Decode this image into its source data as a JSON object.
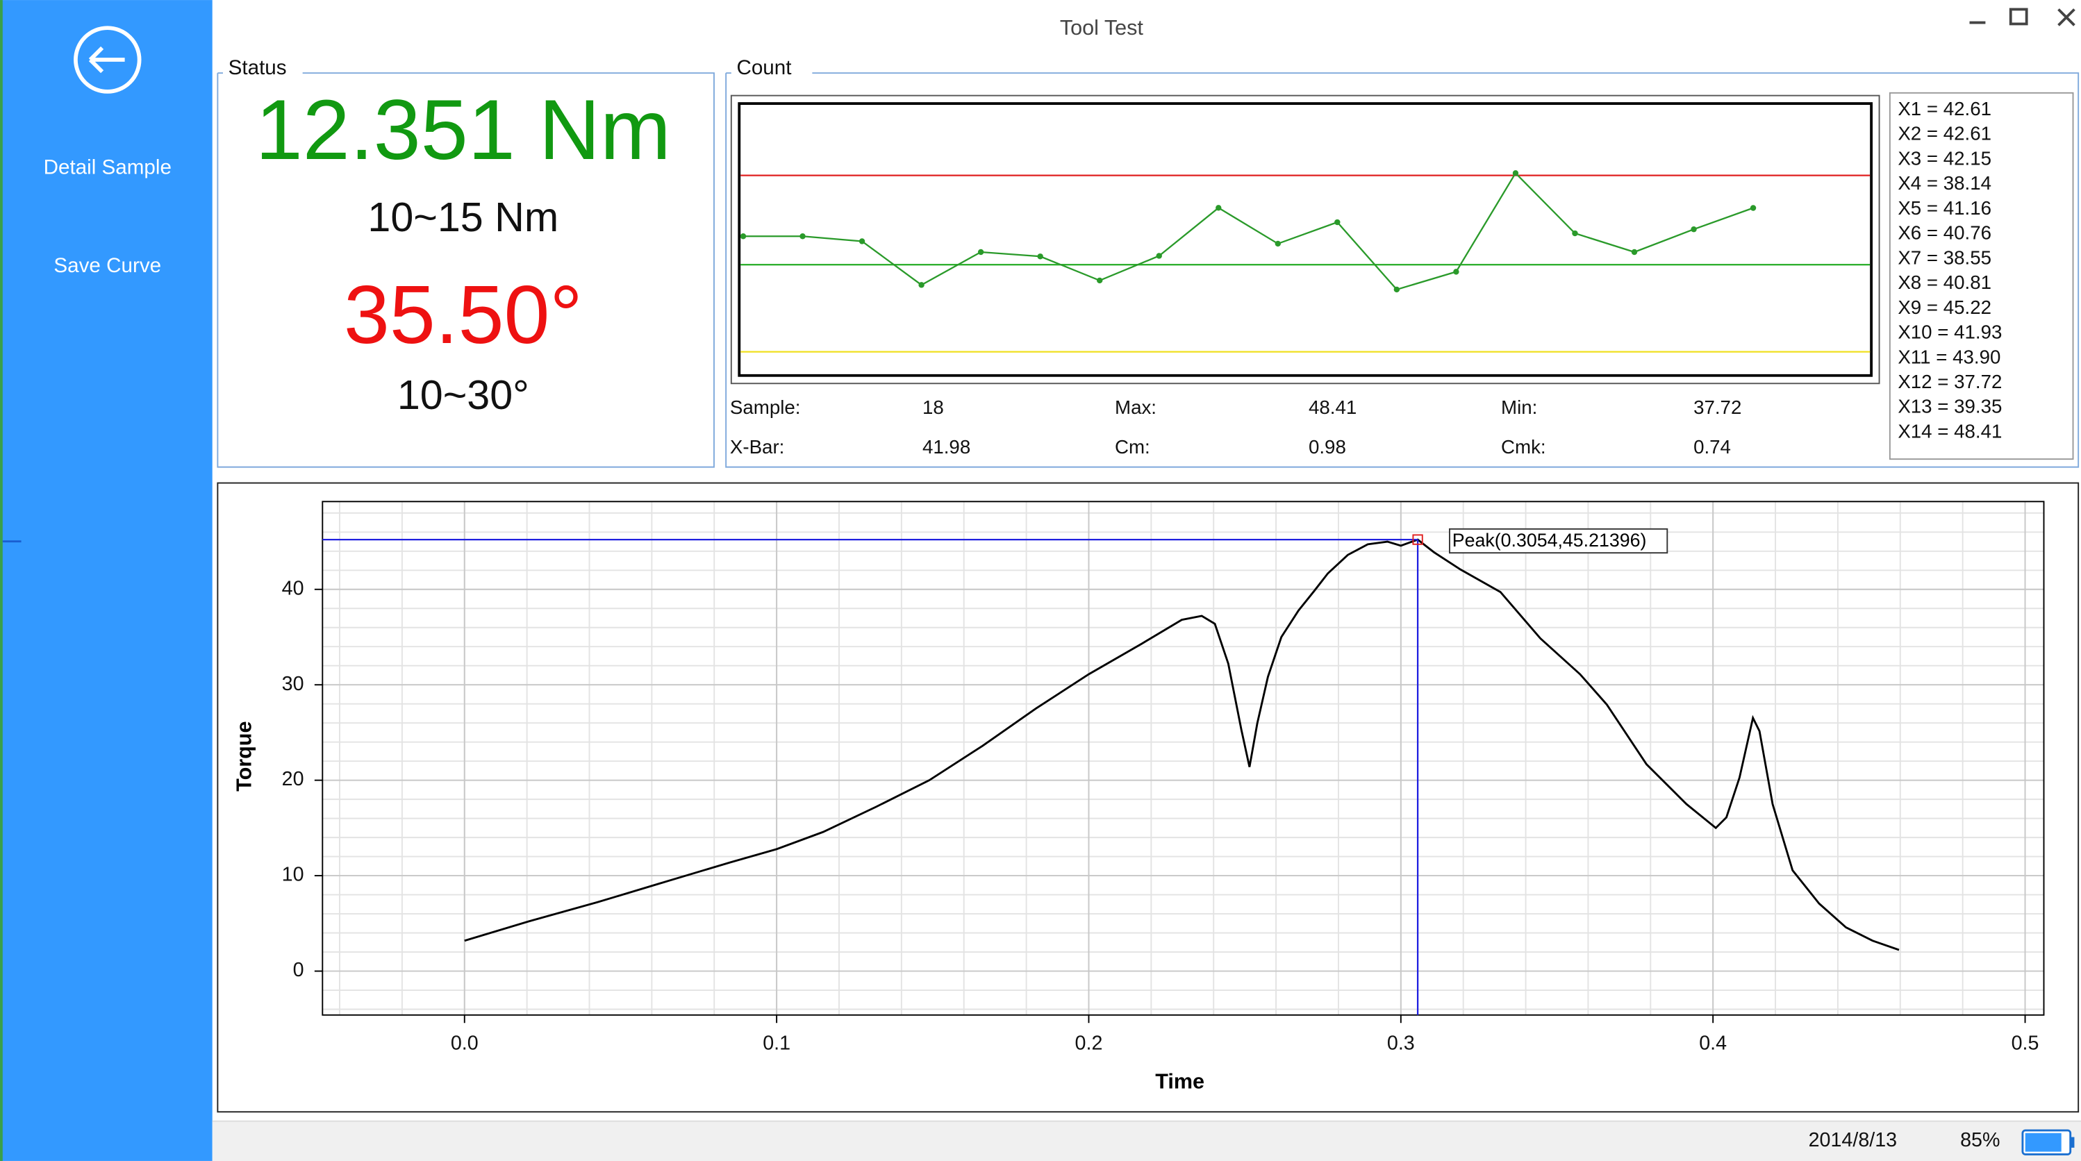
{
  "window": {
    "title": "Tool Test"
  },
  "sidebar": {
    "items": [
      "Detail Sample",
      "Save Curve"
    ]
  },
  "status": {
    "title": "Status",
    "torque": "12.351 Nm",
    "torque_range": "10~15 Nm",
    "angle": "35.50°",
    "angle_range": "10~30°"
  },
  "count": {
    "title": "Count",
    "stats": [
      [
        "Sample:",
        "18",
        "Max:",
        "48.41",
        "Min:",
        "37.72"
      ],
      [
        "X-Bar:",
        "41.98",
        "Cm:",
        "0.98",
        "Cmk:",
        "0.74"
      ]
    ],
    "list": [
      "X1 = 42.61",
      "X2 = 42.61",
      "X3 = 42.15",
      "X4 = 38.14",
      "X5 = 41.16",
      "X6 = 40.76",
      "X7 = 38.55",
      "X8 = 40.81",
      "X9 = 45.22",
      "X10 = 41.93",
      "X11 = 43.90",
      "X12 = 37.72",
      "X13 = 39.35",
      "X14 = 48.41"
    ]
  },
  "chart_data": [
    {
      "type": "line",
      "values": [
        42.61,
        42.61,
        42.15,
        38.14,
        41.16,
        40.76,
        38.55,
        40.81,
        45.22,
        41.93,
        43.9,
        37.72,
        39.35,
        48.41,
        42.88,
        41.16,
        43.25,
        45.21
      ],
      "color": "#2a9a2a",
      "markers": true,
      "ylim": [
        29.7,
        54.8
      ],
      "limits": [
        {
          "value": 48.2,
          "color": "#e02020"
        },
        {
          "value": 40.0,
          "color": "#30b030"
        },
        {
          "value": 32.0,
          "color": "#f0e020"
        }
      ]
    },
    {
      "type": "line",
      "x": [
        0.0,
        0.0213,
        0.0426,
        0.0638,
        0.0851,
        0.1,
        0.1149,
        0.1319,
        0.1489,
        0.166,
        0.183,
        0.2,
        0.217,
        0.2298,
        0.2362,
        0.2404,
        0.2447,
        0.2489,
        0.2515,
        0.254,
        0.2574,
        0.2617,
        0.2672,
        0.2723,
        0.2766,
        0.283,
        0.2894,
        0.2957,
        0.3,
        0.3054,
        0.3106,
        0.3191,
        0.3319,
        0.3447,
        0.3574,
        0.366,
        0.3787,
        0.3915,
        0.4009,
        0.4043,
        0.4085,
        0.4128,
        0.4149,
        0.4191,
        0.4255,
        0.434,
        0.4426,
        0.4511,
        0.4596
      ],
      "values": [
        3.19,
        5.28,
        7.22,
        9.31,
        11.39,
        12.78,
        14.58,
        17.22,
        20.0,
        23.61,
        27.5,
        31.11,
        34.31,
        36.81,
        37.22,
        36.39,
        32.22,
        25.28,
        21.39,
        25.97,
        30.83,
        35.0,
        37.78,
        39.86,
        41.67,
        43.61,
        44.72,
        45.0,
        44.58,
        45.21,
        43.89,
        42.08,
        39.72,
        34.86,
        31.11,
        27.92,
        21.67,
        17.5,
        15.0,
        16.11,
        20.28,
        26.53,
        25.14,
        17.5,
        10.56,
        7.08,
        4.58,
        3.19,
        2.22
      ],
      "color": "#000000",
      "xlabel": "Time",
      "ylabel": "Torque",
      "xlim": [
        -0.0455,
        0.506
      ],
      "ylim": [
        -4.6,
        49.2
      ],
      "xticks": [
        {
          "value": 0.0,
          "label": "0.0"
        },
        0.1,
        0.2,
        0.3,
        0.4,
        0.5
      ],
      "yticks": [
        0,
        10,
        20,
        30,
        40
      ],
      "grid": true,
      "x_minor_step": 0.02,
      "y_minor_step": 2,
      "peak": {
        "x": 0.3054,
        "y": 45.21396,
        "label": "Peak(0.3054,45.21396)",
        "color": "#2020e0"
      }
    }
  ],
  "status_bar": {
    "date": "2014/8/13",
    "battery": {
      "value": 85,
      "label": "85%"
    }
  }
}
